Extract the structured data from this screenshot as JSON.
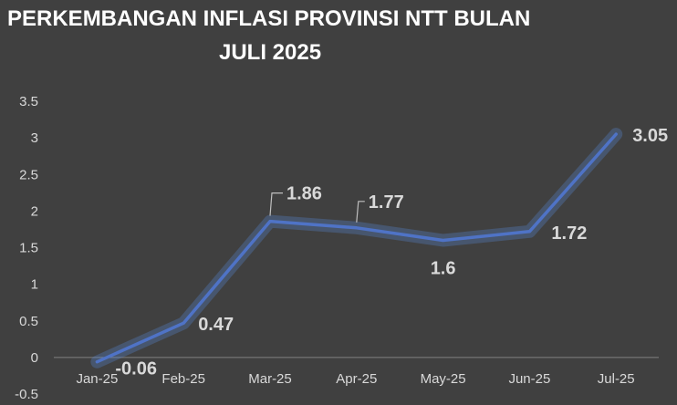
{
  "chart_data": {
    "type": "line",
    "title_lines": [
      "PERKEMBANGAN INFLASI PROVINSI NTT BULAN",
      "JULI 2025"
    ],
    "categories": [
      "Jan-25",
      "Feb-25",
      "Mar-25",
      "Apr-25",
      "May-25",
      "Jun-25",
      "Jul-25"
    ],
    "series": [
      {
        "values": [
          -0.06,
          0.47,
          1.86,
          1.77,
          1.6,
          1.72,
          3.05
        ]
      }
    ],
    "data_labels": [
      "-0.06",
      "0.47",
      "1.86",
      "1.77",
      "1.6",
      "1.72",
      "3.05"
    ],
    "y_ticks": [
      "-0.5",
      "0",
      "0.5",
      "1",
      "1.5",
      "2",
      "2.5",
      "3",
      "3.5"
    ],
    "ylim": [
      -0.5,
      3.5
    ],
    "grid": false,
    "legend": "none",
    "line_color": "#4f73c6",
    "background": "#404040"
  }
}
